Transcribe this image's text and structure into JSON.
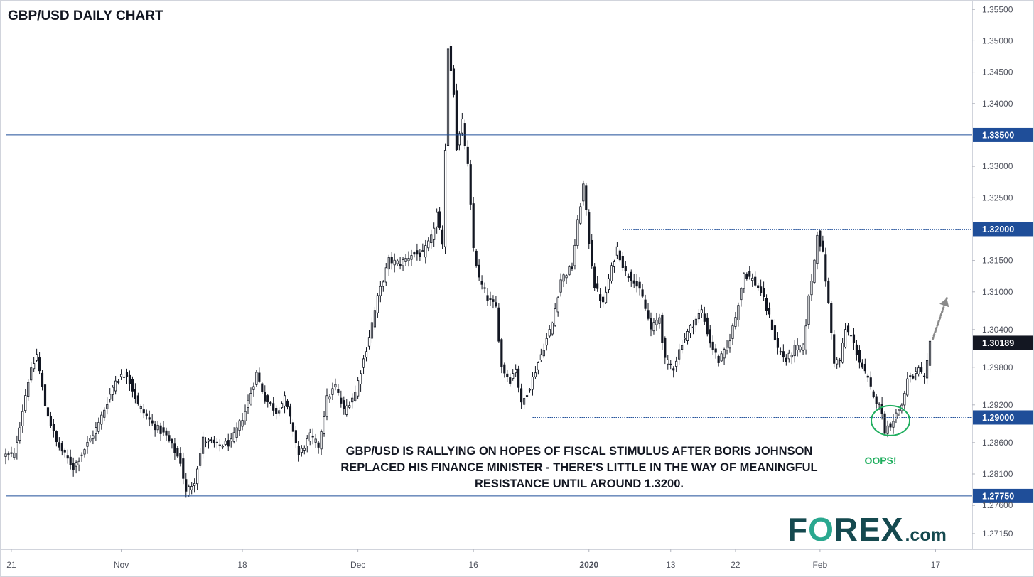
{
  "chart_data": {
    "type": "candlestick",
    "title": "GBP/USD DAILY CHART",
    "pair": "GBP/USD",
    "timeframe": "daily",
    "ylim": [
      1.269,
      1.3565
    ],
    "y_ticks": [
      1.2715,
      1.276,
      1.281,
      1.286,
      1.292,
      1.298,
      1.304,
      1.31,
      1.315,
      1.325,
      1.33,
      1.34,
      1.345,
      1.35,
      1.355
    ],
    "y_tick_labels": [
      "1.27150",
      "1.27600",
      "1.28100",
      "1.28600",
      "1.29200",
      "1.29800",
      "1.30400",
      "1.31000",
      "1.31500",
      "1.32500",
      "1.33000",
      "1.34000",
      "1.34500",
      "1.35000",
      "1.35500"
    ],
    "x_ticks": [
      {
        "label": "21",
        "bar": 2,
        "bold": false
      },
      {
        "label": "Nov",
        "bar": 41,
        "bold": false
      },
      {
        "label": "18",
        "bar": 84,
        "bold": false
      },
      {
        "label": "Dec",
        "bar": 125,
        "bold": false
      },
      {
        "label": "16",
        "bar": 166,
        "bold": false
      },
      {
        "label": "2020",
        "bar": 207,
        "bold": true
      },
      {
        "label": "13",
        "bar": 236,
        "bold": false
      },
      {
        "label": "22",
        "bar": 259,
        "bold": false
      },
      {
        "label": "Feb",
        "bar": 289,
        "bold": false
      },
      {
        "label": "17",
        "bar": 330,
        "bold": false
      }
    ],
    "x_range": [
      0,
      343
    ],
    "levels": [
      {
        "name": "resistance-1-335",
        "value": 1.335,
        "label": "1.33500",
        "style": "solid",
        "color": "#1f4e99",
        "from_bar": 0
      },
      {
        "name": "resistance-1-32",
        "value": 1.32,
        "label": "1.32000",
        "style": "dotted",
        "color": "#1f4e99",
        "from_bar": 219
      },
      {
        "name": "support-1-29",
        "value": 1.29,
        "label": "1.29000",
        "style": "dotted",
        "color": "#1f4e99",
        "from_bar": 187
      },
      {
        "name": "support-1-2775",
        "value": 1.2775,
        "label": "1.27750",
        "style": "solid",
        "color": "#1f4e99",
        "from_bar": 0
      }
    ],
    "current_price": {
      "value": 1.30189,
      "label": "1.30189",
      "color": "#131722"
    },
    "keypoints": [
      {
        "bar": 0,
        "price": 1.284
      },
      {
        "bar": 3,
        "price": 1.284
      },
      {
        "bar": 8,
        "price": 1.296
      },
      {
        "bar": 11,
        "price": 1.3
      },
      {
        "bar": 14,
        "price": 1.292
      },
      {
        "bar": 18,
        "price": 1.286
      },
      {
        "bar": 24,
        "price": 1.282
      },
      {
        "bar": 28,
        "price": 1.285
      },
      {
        "bar": 33,
        "price": 1.289
      },
      {
        "bar": 39,
        "price": 1.296
      },
      {
        "bar": 43,
        "price": 1.297
      },
      {
        "bar": 47,
        "price": 1.292
      },
      {
        "bar": 52,
        "price": 1.289
      },
      {
        "bar": 57,
        "price": 1.287
      },
      {
        "bar": 62,
        "price": 1.283
      },
      {
        "bar": 64,
        "price": 1.278
      },
      {
        "bar": 67,
        "price": 1.28
      },
      {
        "bar": 70,
        "price": 1.2865
      },
      {
        "bar": 75,
        "price": 1.2855
      },
      {
        "bar": 80,
        "price": 1.286
      },
      {
        "bar": 85,
        "price": 1.291
      },
      {
        "bar": 89,
        "price": 1.297
      },
      {
        "bar": 92,
        "price": 1.293
      },
      {
        "bar": 96,
        "price": 1.291
      },
      {
        "bar": 99,
        "price": 1.293
      },
      {
        "bar": 102,
        "price": 1.288
      },
      {
        "bar": 104,
        "price": 1.284
      },
      {
        "bar": 108,
        "price": 1.287
      },
      {
        "bar": 111,
        "price": 1.2855
      },
      {
        "bar": 114,
        "price": 1.293
      },
      {
        "bar": 117,
        "price": 1.295
      },
      {
        "bar": 120,
        "price": 1.291
      },
      {
        "bar": 124,
        "price": 1.294
      },
      {
        "bar": 128,
        "price": 1.301
      },
      {
        "bar": 132,
        "price": 1.309
      },
      {
        "bar": 136,
        "price": 1.315
      },
      {
        "bar": 140,
        "price": 1.3145
      },
      {
        "bar": 144,
        "price": 1.316
      },
      {
        "bar": 148,
        "price": 1.316
      },
      {
        "bar": 151,
        "price": 1.3185
      },
      {
        "bar": 153,
        "price": 1.3225
      },
      {
        "bar": 155,
        "price": 1.317
      },
      {
        "bar": 157,
        "price": 1.349
      },
      {
        "bar": 159,
        "price": 1.342
      },
      {
        "bar": 160,
        "price": 1.333
      },
      {
        "bar": 162,
        "price": 1.337
      },
      {
        "bar": 164,
        "price": 1.33
      },
      {
        "bar": 166,
        "price": 1.317
      },
      {
        "bar": 168,
        "price": 1.312
      },
      {
        "bar": 171,
        "price": 1.309
      },
      {
        "bar": 174,
        "price": 1.3075
      },
      {
        "bar": 176,
        "price": 1.298
      },
      {
        "bar": 179,
        "price": 1.296
      },
      {
        "bar": 181,
        "price": 1.298
      },
      {
        "bar": 183,
        "price": 1.292
      },
      {
        "bar": 186,
        "price": 1.295
      },
      {
        "bar": 190,
        "price": 1.3
      },
      {
        "bar": 194,
        "price": 1.305
      },
      {
        "bar": 197,
        "price": 1.312
      },
      {
        "bar": 201,
        "price": 1.314
      },
      {
        "bar": 203,
        "price": 1.321
      },
      {
        "bar": 205,
        "price": 1.327
      },
      {
        "bar": 207,
        "price": 1.318
      },
      {
        "bar": 209,
        "price": 1.311
      },
      {
        "bar": 212,
        "price": 1.308
      },
      {
        "bar": 214,
        "price": 1.312
      },
      {
        "bar": 217,
        "price": 1.317
      },
      {
        "bar": 220,
        "price": 1.313
      },
      {
        "bar": 223,
        "price": 1.312
      },
      {
        "bar": 226,
        "price": 1.309
      },
      {
        "bar": 229,
        "price": 1.304
      },
      {
        "bar": 232,
        "price": 1.306
      },
      {
        "bar": 234,
        "price": 1.299
      },
      {
        "bar": 237,
        "price": 1.298
      },
      {
        "bar": 240,
        "price": 1.302
      },
      {
        "bar": 244,
        "price": 1.305
      },
      {
        "bar": 247,
        "price": 1.307
      },
      {
        "bar": 250,
        "price": 1.302
      },
      {
        "bar": 253,
        "price": 1.299
      },
      {
        "bar": 256,
        "price": 1.301
      },
      {
        "bar": 259,
        "price": 1.306
      },
      {
        "bar": 262,
        "price": 1.313
      },
      {
        "bar": 265,
        "price": 1.312
      },
      {
        "bar": 268,
        "price": 1.31
      },
      {
        "bar": 271,
        "price": 1.306
      },
      {
        "bar": 274,
        "price": 1.301
      },
      {
        "bar": 277,
        "price": 1.299
      },
      {
        "bar": 280,
        "price": 1.301
      },
      {
        "bar": 283,
        "price": 1.301
      },
      {
        "bar": 285,
        "price": 1.309
      },
      {
        "bar": 287,
        "price": 1.315
      },
      {
        "bar": 288,
        "price": 1.3195
      },
      {
        "bar": 290,
        "price": 1.316
      },
      {
        "bar": 292,
        "price": 1.308
      },
      {
        "bar": 294,
        "price": 1.299
      },
      {
        "bar": 296,
        "price": 1.299
      },
      {
        "bar": 298,
        "price": 1.304
      },
      {
        "bar": 300,
        "price": 1.303
      },
      {
        "bar": 303,
        "price": 1.299
      },
      {
        "bar": 306,
        "price": 1.296
      },
      {
        "bar": 308,
        "price": 1.293
      },
      {
        "bar": 310,
        "price": 1.2925
      },
      {
        "bar": 312,
        "price": 1.288
      },
      {
        "bar": 314,
        "price": 1.289
      },
      {
        "bar": 316,
        "price": 1.2905
      },
      {
        "bar": 318,
        "price": 1.292
      },
      {
        "bar": 320,
        "price": 1.296
      },
      {
        "bar": 322,
        "price": 1.2965
      },
      {
        "bar": 324,
        "price": 1.2975
      },
      {
        "bar": 326,
        "price": 1.296
      },
      {
        "bar": 327,
        "price": 1.2985
      },
      {
        "bar": 328,
        "price": 1.3019
      }
    ],
    "projection_arrow": {
      "from": {
        "bar": 329,
        "price": 1.3025
      },
      "to": {
        "bar": 334,
        "price": 1.309
      },
      "color": "#8a8a8a"
    },
    "highlight_circle": {
      "bar": 314,
      "price": 1.2895,
      "label": "OOPS!",
      "color": "#1fae5e"
    },
    "annotation": "GBP/USD IS RALLYING ON HOPES OF FISCAL STIMULUS AFTER BORIS JOHNSON REPLACED HIS FINANCE MINISTER - THERE'S LITTLE IN THE WAY OF MEANINGFUL RESISTANCE UNTIL AROUND 1.3200."
  },
  "logo": {
    "part1": "F",
    "part2": "O",
    "part3": "REX",
    "suffix": ".com"
  },
  "colors": {
    "candle": "#131722",
    "axis_border": "#d1d4dc",
    "level_line": "#1f4e99",
    "highlight": "#1fae5e"
  }
}
